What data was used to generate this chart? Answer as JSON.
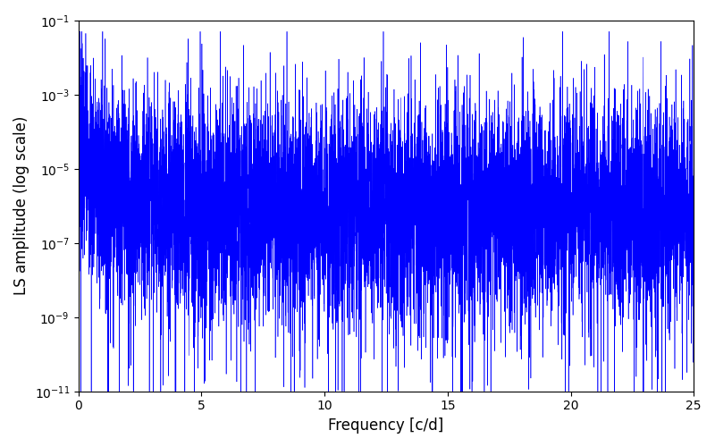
{
  "title": "",
  "xlabel": "Frequency [c/d]",
  "ylabel": "LS amplitude (log scale)",
  "xlim": [
    0,
    25
  ],
  "ylim": [
    1e-11,
    0.1
  ],
  "line_color": "#0000ff",
  "line_width": 0.4,
  "background_color": "#ffffff",
  "freq_max": 25.0,
  "n_points": 8000,
  "seed": 7
}
